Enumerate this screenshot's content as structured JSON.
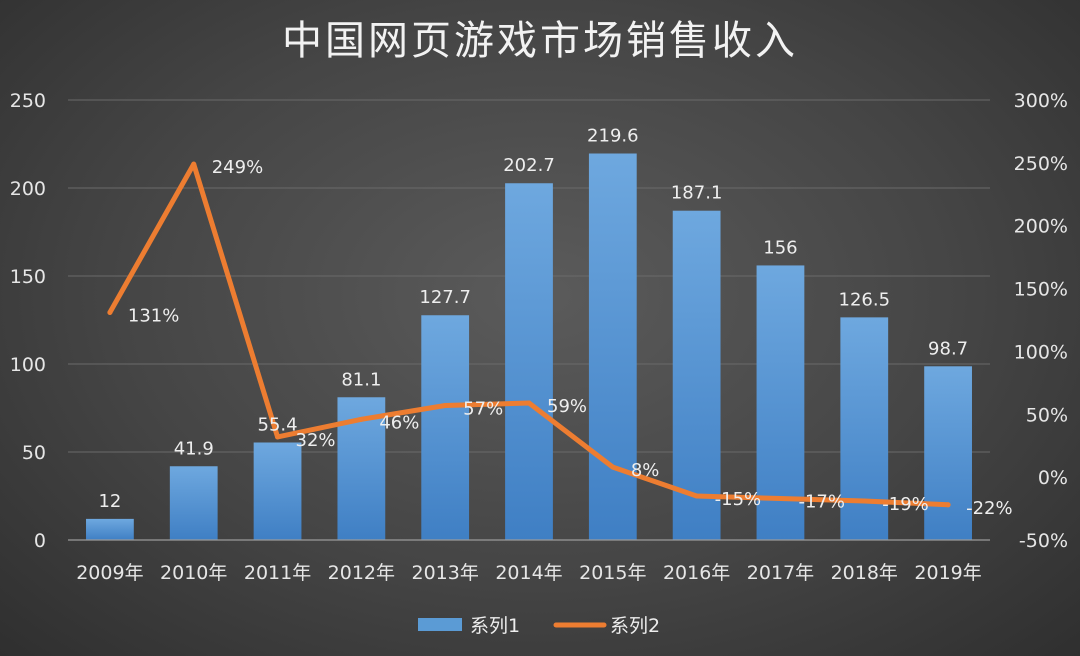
{
  "chart_data": {
    "type": "bar",
    "title": "中国网页游戏市场销售收入",
    "categories": [
      "2009年",
      "2010年",
      "2011年",
      "2012年",
      "2013年",
      "2014年",
      "2015年",
      "2016年",
      "2017年",
      "2018年",
      "2019年"
    ],
    "series": [
      {
        "name": "系列1",
        "type": "bar",
        "axis": "left",
        "values": [
          12,
          41.9,
          55.4,
          81.1,
          127.7,
          202.7,
          219.6,
          187.1,
          156,
          126.5,
          98.7
        ],
        "labels": [
          "12",
          "41.9",
          "55.4",
          "81.1",
          "127.7",
          "202.7",
          "219.6",
          "187.1",
          "156",
          "126.5",
          "98.7"
        ],
        "color": "#5b9bd5"
      },
      {
        "name": "系列2",
        "type": "line",
        "axis": "right",
        "values": [
          131,
          249,
          32,
          46,
          57,
          59,
          8,
          -15,
          -17,
          -19,
          -22
        ],
        "labels": [
          "131%",
          "249%",
          "32%",
          "46%",
          "57%",
          "59%",
          "8%",
          "-15%",
          "-17%",
          "-19%",
          "-22%"
        ],
        "color": "#ed7d31"
      }
    ],
    "y_left": {
      "range": [
        0,
        250
      ],
      "ticks": [
        0,
        50,
        100,
        150,
        200,
        250
      ],
      "tick_labels": [
        "0",
        "50",
        "100",
        "150",
        "200",
        "250"
      ]
    },
    "y_right": {
      "range": [
        -50,
        300
      ],
      "ticks": [
        -50,
        0,
        50,
        100,
        150,
        200,
        250,
        300
      ],
      "tick_labels": [
        "-50%",
        "0%",
        "50%",
        "100%",
        "150%",
        "200%",
        "250%",
        "300%"
      ]
    },
    "grid": true,
    "legend": "bottom-center"
  }
}
